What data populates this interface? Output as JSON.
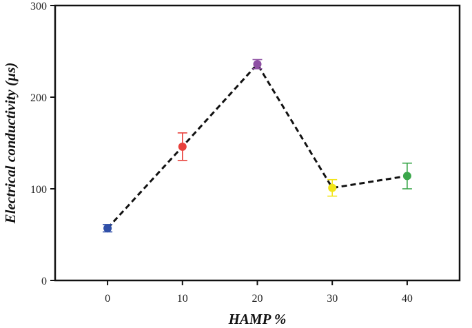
{
  "chart_data": {
    "type": "line",
    "title": "",
    "xlabel": "HAMP %",
    "ylabel": "Electrical conductivity (µs)",
    "x": [
      0,
      10,
      20,
      30,
      40
    ],
    "x_ticks": [
      "0",
      "10",
      "20",
      "30",
      "40"
    ],
    "y_ticks": [
      "0",
      "100",
      "200",
      "300"
    ],
    "xlim": [
      -7,
      47
    ],
    "ylim": [
      0,
      300
    ],
    "grid": false,
    "legend": "none",
    "line_style": "dashed",
    "line_color": "#111111",
    "series": [
      {
        "values": [
          57,
          146,
          236,
          101,
          114
        ],
        "errors": [
          4,
          15,
          5,
          9,
          14
        ],
        "colors": [
          "#2f4fa8",
          "#e8413c",
          "#8e4fa3",
          "#f2e51a",
          "#3aa64a"
        ]
      }
    ]
  }
}
